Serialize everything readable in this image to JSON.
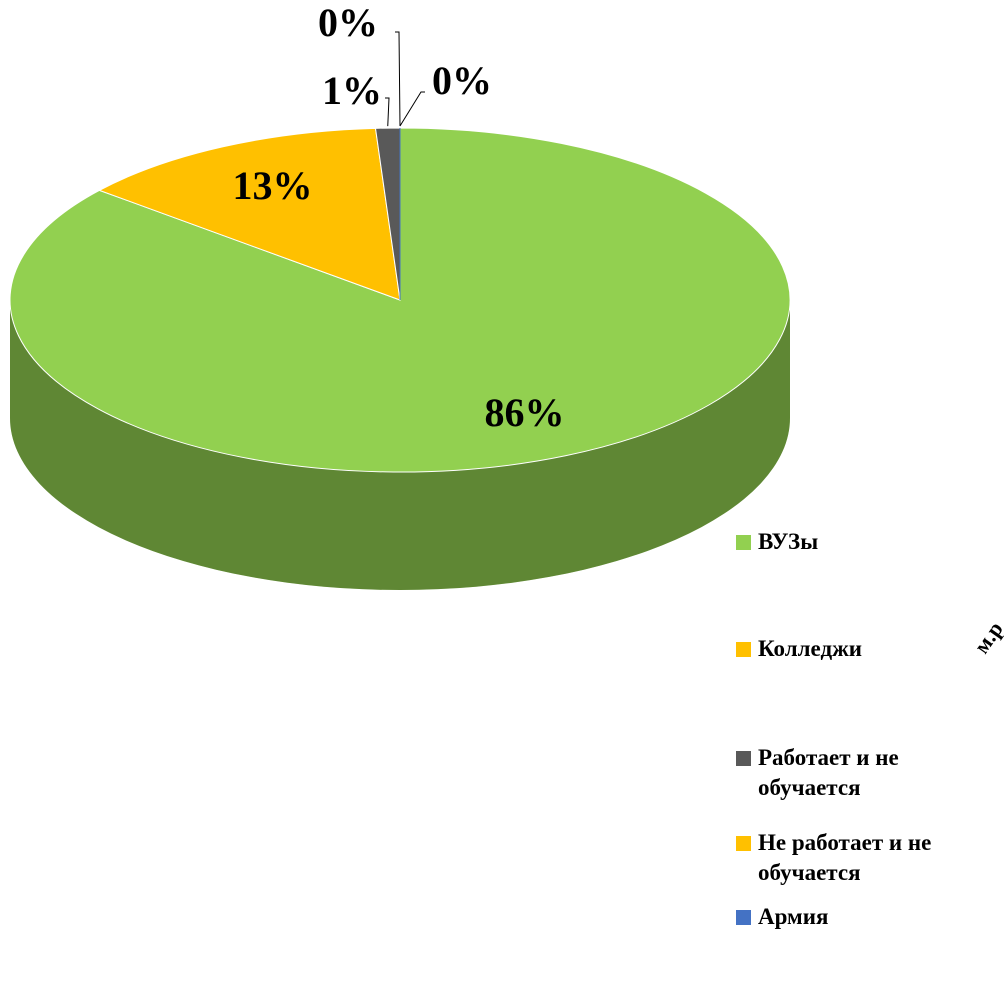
{
  "chart_data": {
    "type": "pie",
    "categories": [
      "ВУЗы",
      "Колледжи",
      "Работает и не обучается",
      "Не работает и не обучается",
      "Армия"
    ],
    "values": [
      86,
      13,
      1,
      0,
      0
    ],
    "value_labels": [
      "86%",
      "13%",
      "1%",
      "0%",
      "0%"
    ],
    "colors": [
      "#92d050",
      "#ffc000",
      "#595959",
      "#ffc000",
      "#4472c4"
    ],
    "annotation": "м.р",
    "legend": "right"
  }
}
